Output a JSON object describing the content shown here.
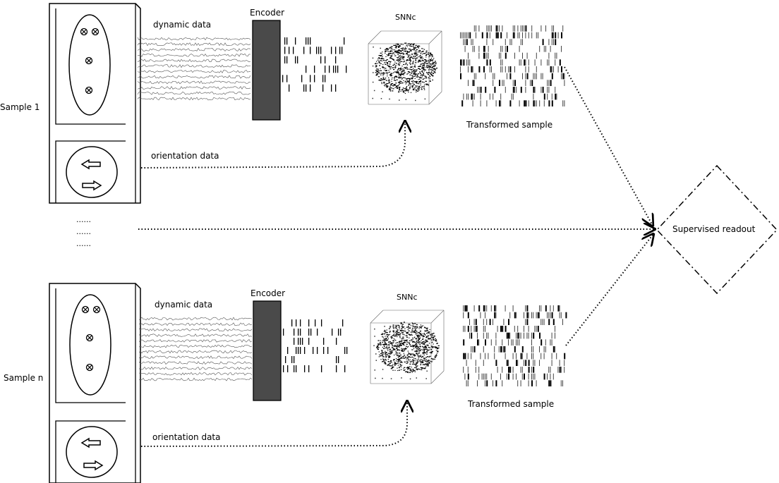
{
  "colors": {
    "encoder_fill": "#4a4a4a",
    "line": "#000000",
    "background": "#ffffff"
  },
  "icons": [
    "cross-circle-icon",
    "left-arrow-icon",
    "right-arrow-icon",
    "cube-icon"
  ],
  "samples": [
    {
      "label": "Sample 1",
      "dynamic_label": "dynamic data",
      "encoder_label": "Encoder",
      "snn_label": "SNNc",
      "transformed_label": "Transformed sample",
      "orientation_label": "orientation data"
    },
    {
      "label": "Sample n",
      "dynamic_label": "dynamic data",
      "encoder_label": "Encoder",
      "snn_label": "SNNc",
      "transformed_label": "Transformed sample",
      "orientation_label": "orientation data"
    }
  ],
  "ellipsis": [
    "......",
    "......",
    "......"
  ],
  "readout_label": "Supervised readout"
}
